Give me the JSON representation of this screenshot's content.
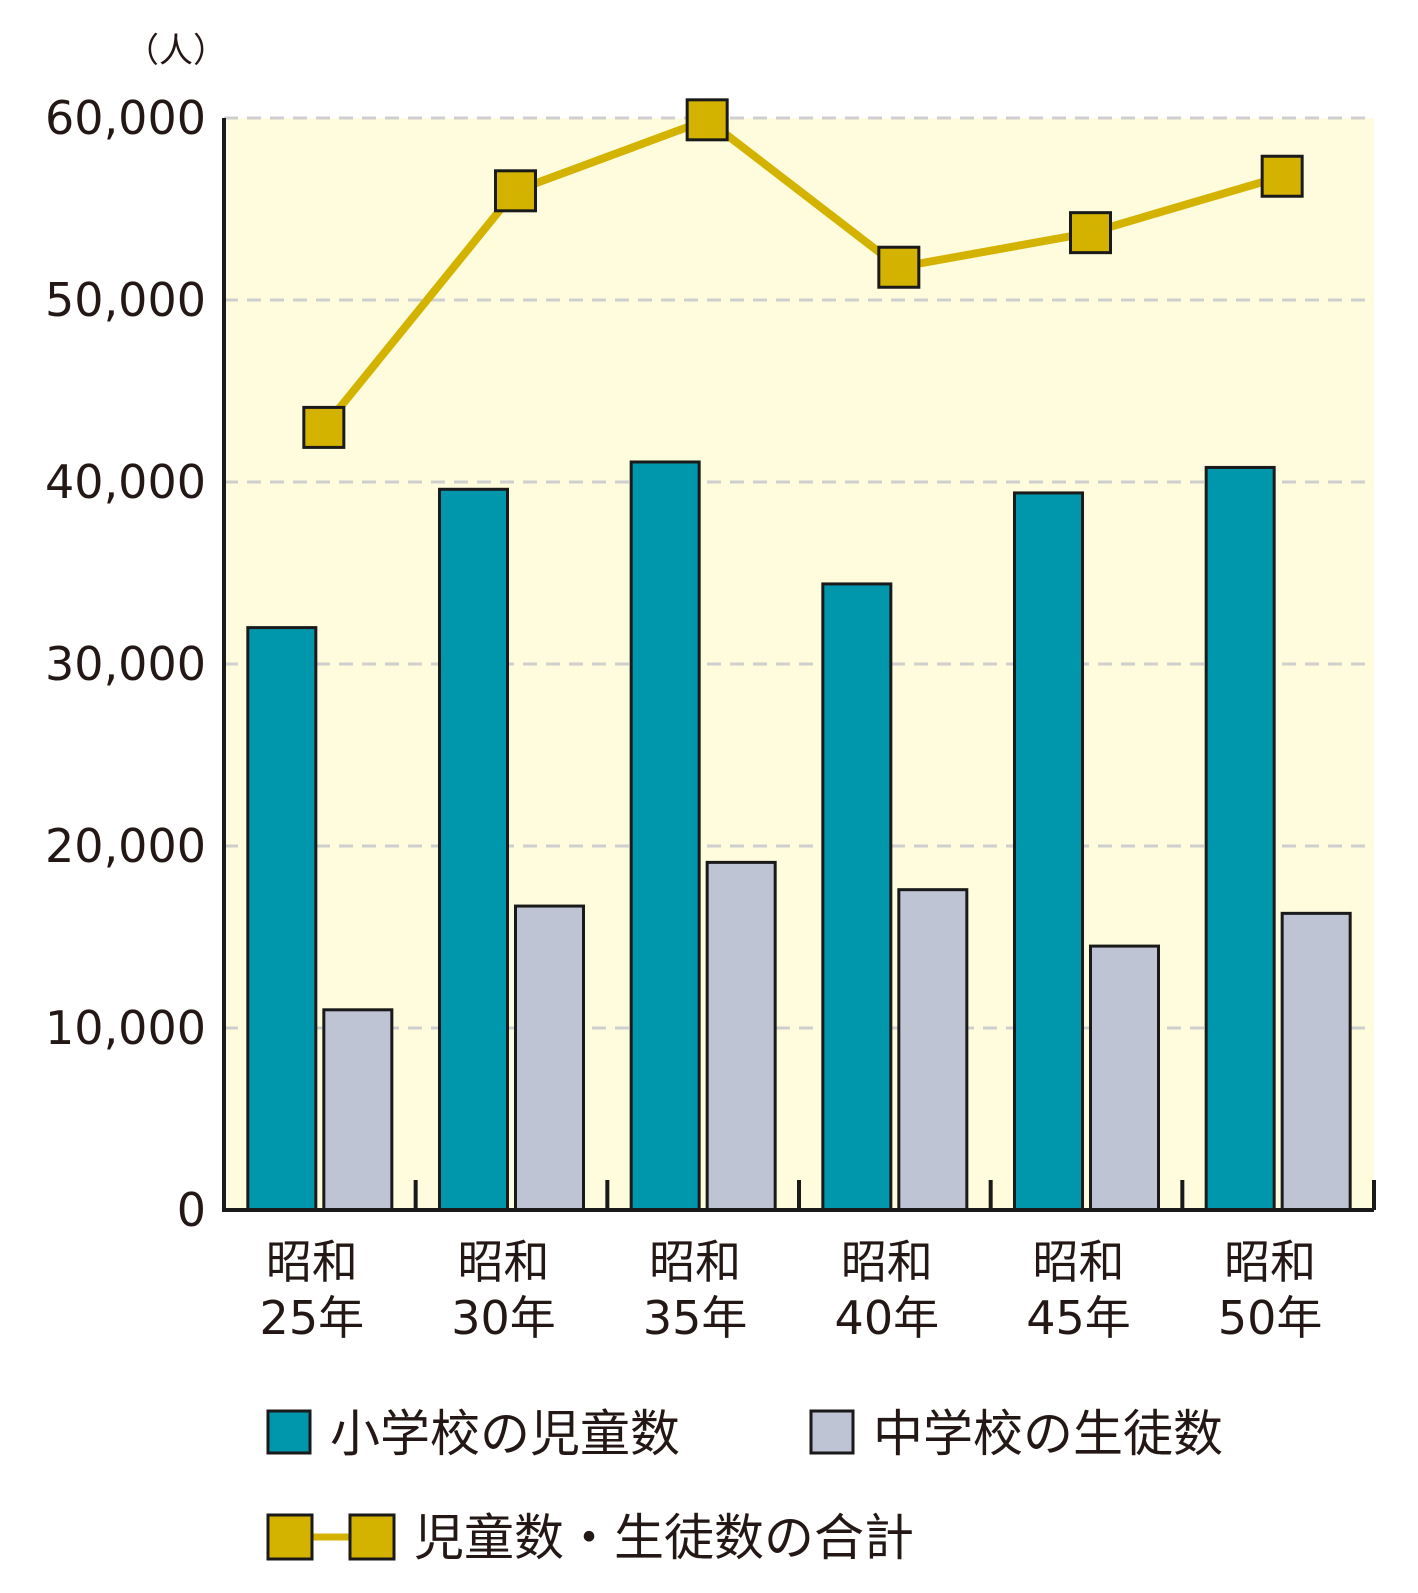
{
  "chart_data": {
    "type": "bar",
    "y_unit": "（人）",
    "categories": [
      [
        "昭和",
        "25年"
      ],
      [
        "昭和",
        "30年"
      ],
      [
        "昭和",
        "35年"
      ],
      [
        "昭和",
        "40年"
      ],
      [
        "昭和",
        "45年"
      ],
      [
        "昭和",
        "50年"
      ]
    ],
    "y_ticks": [
      "0",
      "10,000",
      "20,000",
      "30,000",
      "40,000",
      "50,000",
      "60,000"
    ],
    "ylim": [
      0,
      60000
    ],
    "grid": "horizontal dashed",
    "legend_position": "bottom",
    "series": [
      {
        "name": "小学校の児童数",
        "kind": "bar",
        "values": [
          32000,
          39600,
          41100,
          34400,
          39400,
          40800
        ],
        "color": "#0097ad"
      },
      {
        "name": "中学校の生徒数",
        "kind": "bar",
        "values": [
          11000,
          16700,
          19100,
          17600,
          14500,
          16300
        ],
        "color": "#bfc4d5"
      },
      {
        "name": "児童数・生徒数の合計",
        "kind": "line",
        "values": [
          43000,
          56000,
          59900,
          51800,
          53700,
          56800
        ],
        "color": "#d4b300",
        "marker_color": "#d4b300"
      }
    ],
    "plot_background": "#fffcdd"
  }
}
